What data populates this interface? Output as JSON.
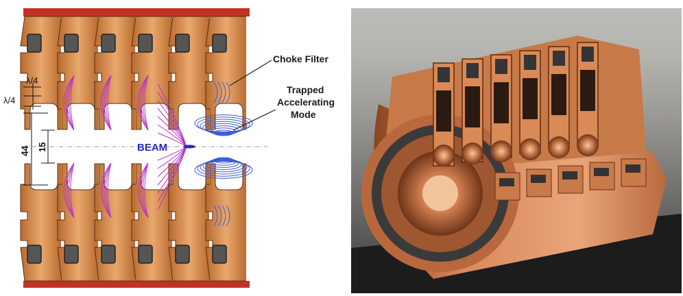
{
  "diagram": {
    "labels": {
      "choke_filter": "Choke Filter",
      "trapped_line1": "Trapped",
      "trapped_line2": "Accelerating",
      "trapped_line3": "Mode",
      "beam": "BEAM",
      "lambda_top": "λ/4",
      "lambda_left": "λ/4",
      "dim_44": "44",
      "dim_15": "15"
    },
    "colors": {
      "copper": "#c0773a",
      "copper_light": "#e7a46a",
      "rail": "#c23224",
      "field_purple": "#b533c8",
      "field_blue": "#3a5bd6",
      "absorber": "#555555",
      "beam_text": "#2a2ab8"
    }
  },
  "photo": {
    "colors": {
      "copper": "#c8774a",
      "copper_dark": "#7a3c1c",
      "absorber": "#3a3a3a",
      "background": "#9a9a9a"
    }
  }
}
